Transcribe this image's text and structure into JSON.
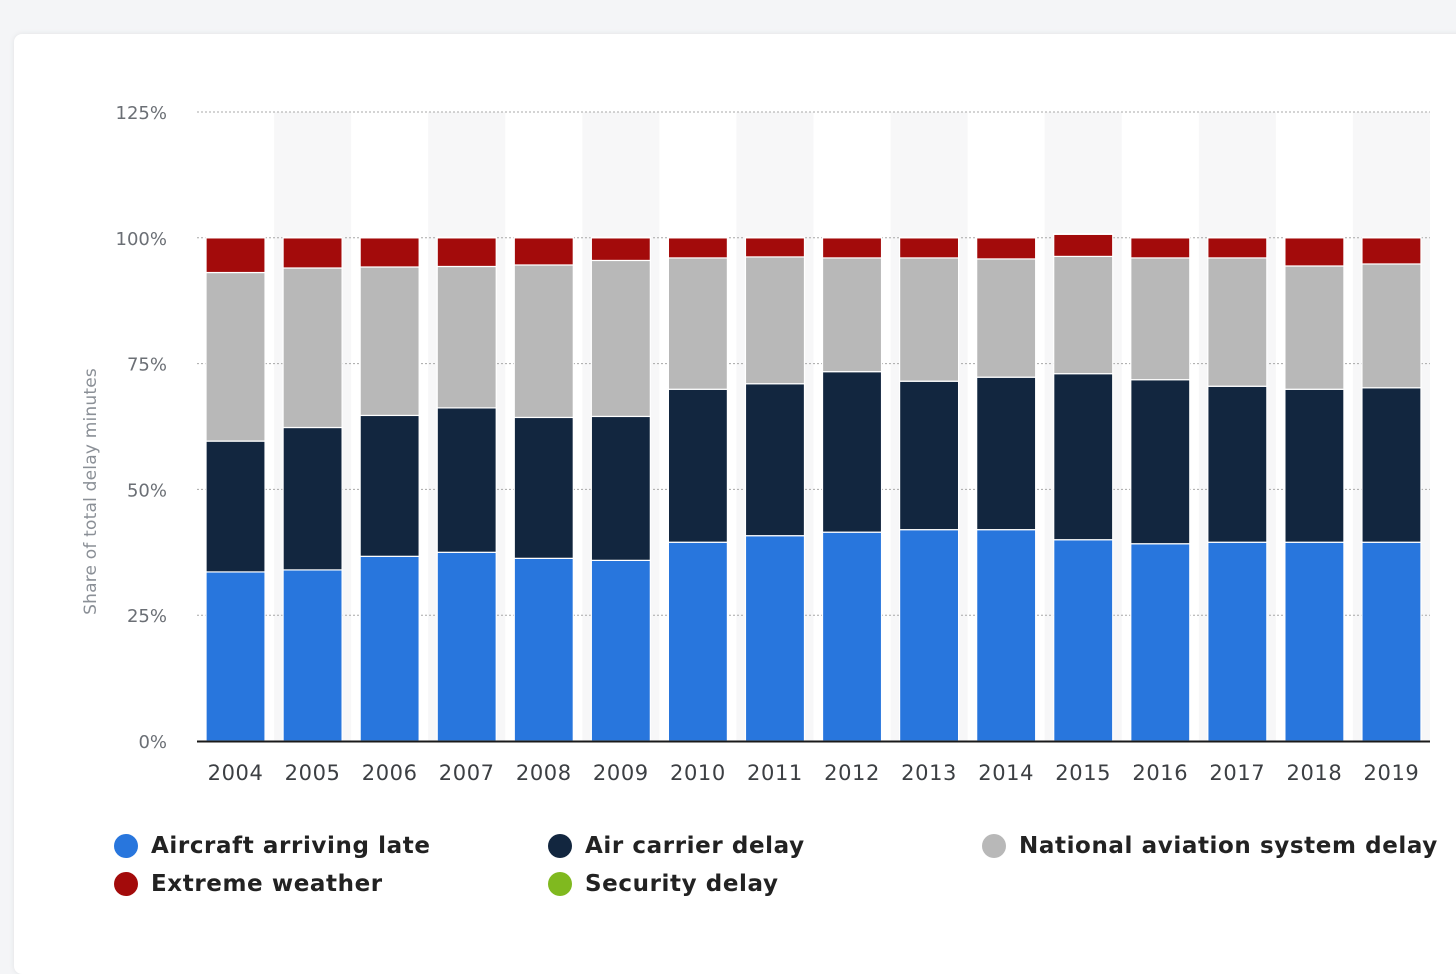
{
  "chart_data": {
    "type": "bar",
    "stacked": true,
    "ylabel": "Share of total delay minutes",
    "ylim": [
      0,
      125
    ],
    "yticks": [
      "0%",
      "25%",
      "50%",
      "75%",
      "100%",
      "125%"
    ],
    "ytick_values": [
      0,
      25,
      50,
      75,
      100,
      125
    ],
    "grid": true,
    "legend_position": "bottom",
    "categories": [
      "2004",
      "2005",
      "2006",
      "2007",
      "2008",
      "2009",
      "2010",
      "2011",
      "2012",
      "2013",
      "2014",
      "2015",
      "2016",
      "2017",
      "2018",
      "2019"
    ],
    "series": [
      {
        "name": "Aircraft arriving late",
        "color": "#2876dd",
        "values": [
          33.6,
          34.0,
          36.7,
          37.5,
          36.3,
          35.9,
          39.5,
          40.8,
          41.5,
          42.0,
          42.0,
          40.0,
          39.2,
          39.5,
          39.5,
          39.5
        ]
      },
      {
        "name": "Air carrier delay",
        "color": "#12263f",
        "values": [
          26.0,
          28.3,
          28.0,
          28.7,
          28.0,
          28.6,
          30.4,
          30.2,
          31.9,
          29.5,
          30.3,
          33.0,
          32.6,
          31.0,
          30.4,
          30.7
        ]
      },
      {
        "name": "National aviation system delay",
        "color": "#b8b8b8",
        "values": [
          33.5,
          31.7,
          29.5,
          28.1,
          30.3,
          31.0,
          26.1,
          25.2,
          22.6,
          24.5,
          23.5,
          23.3,
          24.2,
          25.5,
          24.5,
          24.6
        ]
      },
      {
        "name": "Extreme weather",
        "color": "#a30b0b",
        "values": [
          6.9,
          6.0,
          5.8,
          5.7,
          5.4,
          4.5,
          4.0,
          3.8,
          4.0,
          4.0,
          4.2,
          4.4,
          4.0,
          4.0,
          5.6,
          5.2
        ]
      },
      {
        "name": "Security delay",
        "color": "#80b91f",
        "values": [
          0.1,
          0.1,
          0.1,
          0.1,
          0.1,
          0.1,
          0.1,
          0.1,
          0.1,
          0.1,
          0.1,
          0.1,
          0.1,
          0.1,
          0.1,
          0.1
        ]
      }
    ]
  }
}
